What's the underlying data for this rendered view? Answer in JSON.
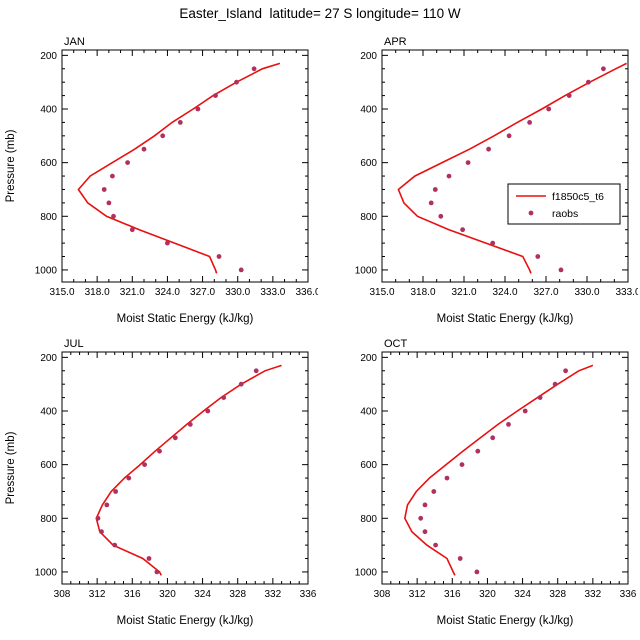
{
  "page_title": "Easter_Island  latitude= 27 S longitude= 110 W",
  "colors": {
    "model_line": "#e81010",
    "obs_dot": "#b03060",
    "axis": "#000000",
    "background": "#ffffff"
  },
  "legend": {
    "panel": "APR",
    "entries": [
      {
        "type": "line",
        "label": "f1850c5_t6"
      },
      {
        "type": "dot",
        "label": "raobs"
      }
    ]
  },
  "axes": {
    "x_label": "Moist Static Energy (kJ/kg)",
    "y_label": "Pressure (mb)",
    "y_ticks": [
      200,
      400,
      600,
      800,
      1000
    ],
    "y_minor_step": 50,
    "y_range": [
      180,
      1045
    ]
  },
  "chart_data": [
    {
      "type": "line",
      "label": "JAN",
      "x_range": [
        315,
        336
      ],
      "x_minor_step": 1,
      "x_tick_values": [
        315,
        318,
        321,
        324,
        327,
        330,
        333,
        336
      ],
      "x_tick_labels": [
        "315.0",
        "318.0",
        "321.0",
        "324.0",
        "327.0",
        "330.0",
        "333.0",
        "336.0"
      ],
      "series": [
        {
          "name": "f1850c5_t6",
          "style": "line",
          "pressure": [
            1013,
            1000,
            950,
            900,
            850,
            800,
            750,
            700,
            650,
            600,
            550,
            500,
            450,
            400,
            350,
            300,
            250,
            230
          ],
          "mse": [
            328.2,
            328.1,
            327.6,
            324.6,
            321.6,
            318.8,
            317.2,
            316.4,
            317.4,
            319.3,
            321.2,
            322.9,
            324.4,
            326.2,
            327.9,
            329.9,
            332.1,
            333.6
          ]
        },
        {
          "name": "raobs",
          "style": "dots",
          "pressure": [
            1000,
            950,
            900,
            850,
            800,
            750,
            700,
            650,
            600,
            550,
            500,
            450,
            400,
            350,
            300,
            250
          ],
          "mse": [
            330.3,
            328.4,
            324.0,
            321.0,
            319.4,
            319.0,
            318.6,
            319.3,
            320.6,
            322.0,
            323.6,
            325.1,
            326.6,
            328.1,
            329.9,
            331.4
          ]
        }
      ]
    },
    {
      "type": "line",
      "label": "APR",
      "x_range": [
        315,
        333
      ],
      "x_minor_step": 1,
      "x_tick_values": [
        315,
        318,
        321,
        324,
        327,
        330,
        333
      ],
      "x_tick_labels": [
        "315.0",
        "318.0",
        "321.0",
        "324.0",
        "327.0",
        "330.0",
        "333.0"
      ],
      "series": [
        {
          "name": "f1850c5_t6",
          "style": "line",
          "pressure": [
            1013,
            1000,
            950,
            900,
            850,
            800,
            750,
            700,
            650,
            600,
            550,
            500,
            450,
            400,
            350,
            300,
            250,
            230
          ],
          "mse": [
            325.9,
            325.8,
            325.3,
            322.6,
            319.9,
            317.6,
            316.6,
            316.2,
            317.4,
            319.4,
            321.4,
            323.2,
            324.9,
            326.7,
            328.4,
            330.2,
            332.1,
            332.9
          ]
        },
        {
          "name": "raobs",
          "style": "dots",
          "pressure": [
            1000,
            950,
            900,
            850,
            800,
            750,
            700,
            650,
            600,
            550,
            500,
            450,
            400,
            350,
            300,
            250
          ],
          "mse": [
            328.1,
            326.4,
            323.1,
            320.9,
            319.3,
            318.6,
            318.9,
            319.9,
            321.3,
            322.8,
            324.3,
            325.8,
            327.2,
            328.7,
            330.1,
            331.2
          ]
        }
      ]
    },
    {
      "type": "line",
      "label": "JUL",
      "x_range": [
        308,
        336
      ],
      "x_minor_step": 1,
      "x_tick_values": [
        308,
        312,
        316,
        320,
        324,
        328,
        332,
        336
      ],
      "x_tick_labels": [
        "308",
        "312",
        "316",
        "320",
        "324",
        "328",
        "332",
        "336"
      ],
      "series": [
        {
          "name": "f1850c5_t6",
          "style": "line",
          "pressure": [
            1013,
            1000,
            950,
            900,
            850,
            800,
            750,
            700,
            650,
            600,
            550,
            500,
            450,
            400,
            350,
            300,
            250,
            230
          ],
          "mse": [
            319.3,
            319.1,
            317.2,
            313.8,
            312.3,
            311.9,
            312.6,
            313.6,
            315.1,
            316.9,
            318.6,
            320.4,
            322.2,
            324.1,
            326.1,
            328.4,
            331.1,
            333.0
          ]
        },
        {
          "name": "raobs",
          "style": "dots",
          "pressure": [
            1000,
            950,
            900,
            850,
            800,
            750,
            700,
            650,
            600,
            550,
            500,
            450,
            400,
            350,
            300,
            250
          ],
          "mse": [
            318.8,
            317.9,
            314.0,
            312.5,
            312.1,
            313.1,
            314.1,
            315.6,
            317.4,
            319.1,
            320.9,
            322.6,
            324.6,
            326.4,
            328.4,
            330.1
          ]
        }
      ]
    },
    {
      "type": "line",
      "label": "OCT",
      "x_range": [
        308,
        336
      ],
      "x_minor_step": 1,
      "x_tick_values": [
        308,
        312,
        316,
        320,
        324,
        328,
        332,
        336
      ],
      "x_tick_labels": [
        "308",
        "312",
        "316",
        "320",
        "324",
        "328",
        "332",
        "336"
      ],
      "series": [
        {
          "name": "f1850c5_t6",
          "style": "line",
          "pressure": [
            1013,
            1000,
            950,
            900,
            850,
            800,
            750,
            700,
            650,
            600,
            550,
            500,
            450,
            400,
            350,
            300,
            250,
            230
          ],
          "mse": [
            316.3,
            316.1,
            315.4,
            313.1,
            311.4,
            310.6,
            310.9,
            311.9,
            313.4,
            315.3,
            317.2,
            319.2,
            321.2,
            323.4,
            325.7,
            328.0,
            330.4,
            332.0
          ]
        },
        {
          "name": "raobs",
          "style": "dots",
          "pressure": [
            1000,
            950,
            900,
            850,
            800,
            750,
            700,
            650,
            600,
            550,
            500,
            450,
            400,
            350,
            300,
            250
          ],
          "mse": [
            318.8,
            316.9,
            314.1,
            312.9,
            312.4,
            312.9,
            313.9,
            315.4,
            317.1,
            318.9,
            320.6,
            322.4,
            324.3,
            326.0,
            327.7,
            328.9
          ]
        }
      ]
    }
  ]
}
